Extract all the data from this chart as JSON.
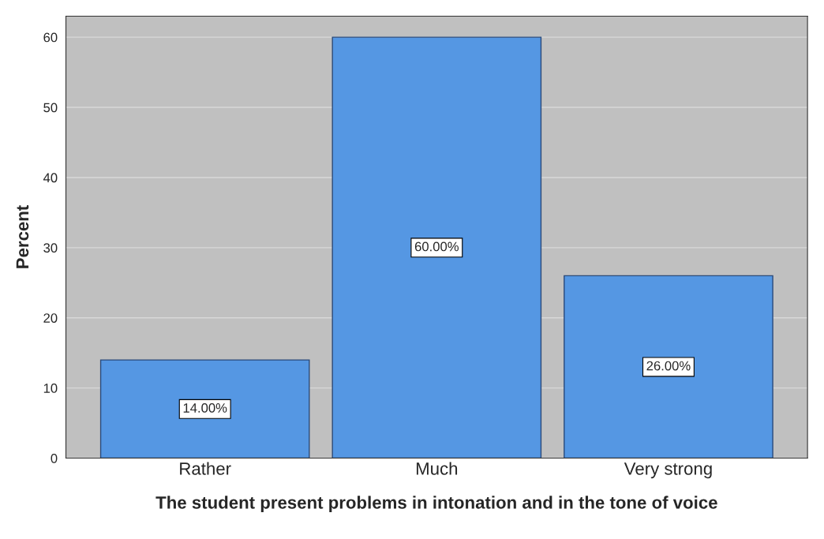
{
  "chart_data": {
    "type": "bar",
    "xlabel": "The student present problems in intonation and in the tone of voice",
    "ylabel": "Percent",
    "categories": [
      "Rather",
      "Much",
      "Very strong"
    ],
    "values": [
      14,
      60,
      26
    ],
    "value_labels": [
      "14.00%",
      "60.00%",
      "26.00%"
    ],
    "color": "#5597e3",
    "ylim": [
      0,
      63
    ],
    "yticks": [
      0,
      10,
      20,
      30,
      40,
      50,
      60
    ],
    "grid": "y"
  }
}
